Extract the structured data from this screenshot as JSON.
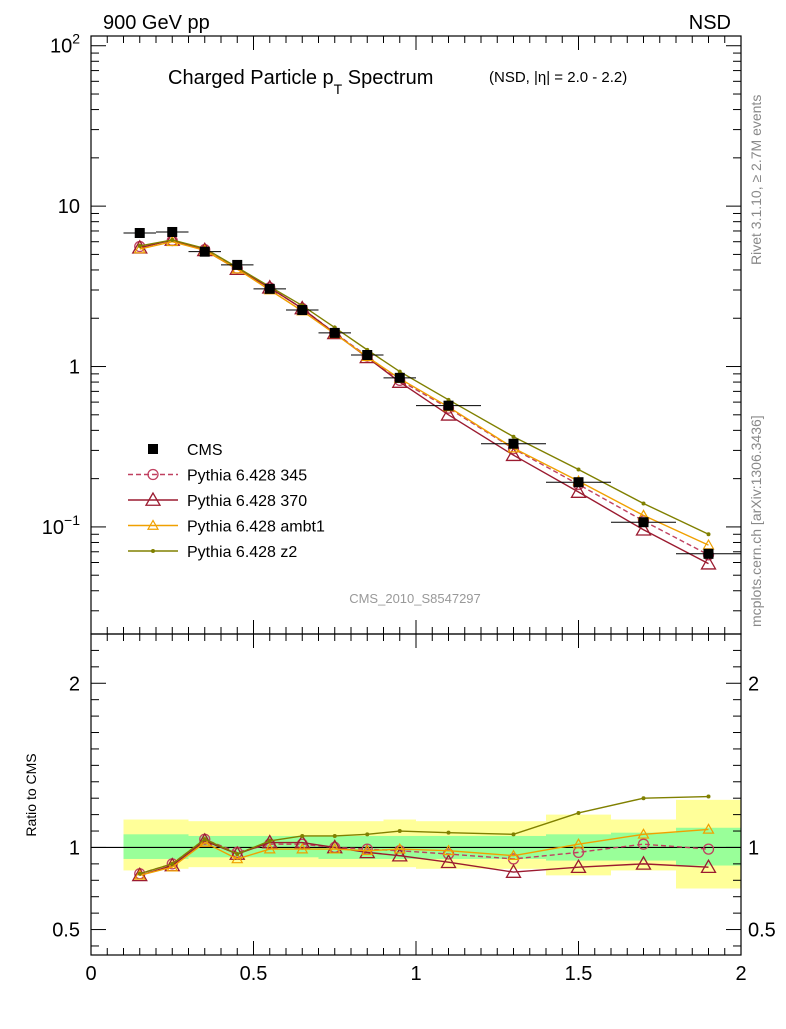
{
  "header": {
    "left": "900 GeV pp",
    "right": "NSD"
  },
  "side_labels": {
    "upper": "Rivet 3.1.10, ≥ 2.7M events",
    "lower": "mcplots.cern.ch [arXiv:1306.3436]"
  },
  "title": {
    "main_prefix": "Charged Particle p",
    "main_sub": "T",
    "main_suffix": " Spectrum",
    "qualifier": "(NSD, |η| = 2.0 - 2.2)"
  },
  "analysis_id": "CMS_2010_S8547297",
  "chart_data": [
    {
      "type": "scatter",
      "panel": "main",
      "log_y": true,
      "xlim": [
        0,
        2
      ],
      "ylim": [
        0.0215,
        115
      ],
      "y_tick_labels": [
        "10^2",
        "10",
        "1",
        "10^-1"
      ],
      "legend_placement": "bottom-left",
      "data": {
        "name": "CMS",
        "x": [
          0.15,
          0.25,
          0.35,
          0.45,
          0.55,
          0.65,
          0.75,
          0.85,
          0.95,
          1.1,
          1.3,
          1.5,
          1.7,
          1.9
        ],
        "y": [
          6.8,
          6.9,
          5.2,
          4.3,
          3.05,
          2.25,
          1.62,
          1.18,
          0.85,
          0.57,
          0.33,
          0.19,
          0.107,
          0.068
        ],
        "x_err": [
          0.05,
          0.05,
          0.05,
          0.05,
          0.05,
          0.05,
          0.05,
          0.05,
          0.05,
          0.1,
          0.1,
          0.1,
          0.1,
          0.1
        ],
        "color": "#000000"
      },
      "series": [
        {
          "name": "Pythia 6.428 345",
          "marker": "open-circle",
          "line": "dashed",
          "color": "#c04060",
          "x": [
            0.15,
            0.25,
            0.35,
            0.45,
            0.55,
            0.65,
            0.75,
            0.85,
            0.95,
            1.1,
            1.3,
            1.5,
            1.7,
            1.9
          ],
          "y": [
            5.6,
            6.1,
            5.35,
            4.1,
            3.1,
            2.3,
            1.62,
            1.16,
            0.82,
            0.55,
            0.307,
            0.184,
            0.109,
            0.067
          ]
        },
        {
          "name": "Pythia 6.428 370",
          "marker": "open-triangle",
          "line": "solid",
          "color": "#9b1b30",
          "x": [
            0.15,
            0.25,
            0.35,
            0.45,
            0.55,
            0.65,
            0.75,
            0.85,
            0.95,
            1.1,
            1.3,
            1.5,
            1.7,
            1.9
          ],
          "y": [
            5.5,
            6.15,
            5.3,
            4.05,
            3.1,
            2.3,
            1.61,
            1.14,
            0.8,
            0.5,
            0.28,
            0.165,
            0.096,
            0.059
          ]
        },
        {
          "name": "Pythia 6.428 ambt1",
          "marker": "open-triangle-small",
          "line": "solid",
          "color": "#f0a000",
          "x": [
            0.15,
            0.25,
            0.35,
            0.45,
            0.55,
            0.65,
            0.75,
            0.85,
            0.95,
            1.1,
            1.3,
            1.5,
            1.7,
            1.9
          ],
          "y": [
            5.4,
            6.0,
            5.3,
            4.05,
            3.0,
            2.22,
            1.6,
            1.15,
            0.84,
            0.56,
            0.31,
            0.193,
            0.118,
            0.077
          ]
        },
        {
          "name": "Pythia 6.428 z2",
          "marker": "dot",
          "line": "solid",
          "color": "#808000",
          "x": [
            0.15,
            0.25,
            0.35,
            0.45,
            0.55,
            0.65,
            0.75,
            0.85,
            0.95,
            1.1,
            1.3,
            1.5,
            1.7,
            1.9
          ],
          "y": [
            5.65,
            6.15,
            5.45,
            4.15,
            3.15,
            2.4,
            1.75,
            1.27,
            0.93,
            0.62,
            0.365,
            0.228,
            0.14,
            0.09
          ]
        }
      ]
    },
    {
      "type": "line",
      "panel": "ratio",
      "ylabel": "Ratio to CMS",
      "xlim": [
        0,
        2
      ],
      "ylim": [
        0.345,
        2.3
      ],
      "x_ticks": [
        0,
        0.5,
        1,
        1.5,
        2
      ],
      "x_tick_labels": [
        "0",
        "0.5",
        "1",
        "1.5",
        "2"
      ],
      "y_ticks": [
        0.5,
        1,
        2
      ],
      "y_tick_labels": [
        "0.5",
        "1",
        "2"
      ],
      "reference_line": 1,
      "bands": [
        {
          "name": "stat",
          "color": "#99ff99",
          "x_lo": [
            0.1,
            0.2,
            0.3,
            0.4,
            0.5,
            0.6,
            0.7,
            0.8,
            0.9,
            1.0,
            1.2,
            1.4,
            1.6,
            1.8
          ],
          "x_hi": [
            0.2,
            0.3,
            0.4,
            0.5,
            0.6,
            0.7,
            0.8,
            0.9,
            1.0,
            1.2,
            1.4,
            1.6,
            1.8,
            2.0
          ],
          "lo": [
            0.93,
            0.93,
            0.94,
            0.94,
            0.94,
            0.94,
            0.93,
            0.93,
            0.93,
            0.93,
            0.93,
            0.92,
            0.92,
            0.89
          ],
          "hi": [
            1.08,
            1.08,
            1.07,
            1.07,
            1.07,
            1.07,
            1.07,
            1.07,
            1.07,
            1.07,
            1.07,
            1.08,
            1.09,
            1.12
          ]
        },
        {
          "name": "syst",
          "color": "#ffff99",
          "x_lo": [
            0.1,
            0.2,
            0.3,
            0.4,
            0.5,
            0.6,
            0.7,
            0.8,
            0.9,
            1.0,
            1.2,
            1.4,
            1.6,
            1.8
          ],
          "x_hi": [
            0.2,
            0.3,
            0.4,
            0.5,
            0.6,
            0.7,
            0.8,
            0.9,
            1.0,
            1.2,
            1.4,
            1.6,
            1.8,
            2.0
          ],
          "lo": [
            0.86,
            0.87,
            0.88,
            0.88,
            0.88,
            0.88,
            0.88,
            0.88,
            0.88,
            0.87,
            0.87,
            0.83,
            0.86,
            0.75
          ],
          "hi": [
            1.17,
            1.17,
            1.16,
            1.16,
            1.16,
            1.16,
            1.16,
            1.16,
            1.17,
            1.16,
            1.16,
            1.2,
            1.17,
            1.29
          ]
        }
      ],
      "series": [
        {
          "name": "Pythia 6.428 345",
          "color": "#c04060",
          "marker": "open-circle",
          "line": "dashed",
          "x": [
            0.15,
            0.25,
            0.35,
            0.45,
            0.55,
            0.65,
            0.75,
            0.85,
            0.95,
            1.1,
            1.3,
            1.5,
            1.7,
            1.9
          ],
          "y": [
            0.84,
            0.9,
            1.05,
            0.97,
            1.02,
            1.02,
            1.0,
            0.99,
            0.98,
            0.96,
            0.93,
            0.97,
            1.02,
            0.99
          ]
        },
        {
          "name": "Pythia 6.428 370",
          "color": "#9b1b30",
          "marker": "open-triangle",
          "line": "solid",
          "x": [
            0.15,
            0.25,
            0.35,
            0.45,
            0.55,
            0.65,
            0.75,
            0.85,
            0.95,
            1.1,
            1.3,
            1.5,
            1.7,
            1.9
          ],
          "y": [
            0.83,
            0.89,
            1.04,
            0.96,
            1.03,
            1.03,
            1.0,
            0.97,
            0.95,
            0.91,
            0.85,
            0.88,
            0.9,
            0.88
          ]
        },
        {
          "name": "Pythia 6.428 ambt1",
          "color": "#f0a000",
          "marker": "open-triangle-small",
          "line": "solid",
          "x": [
            0.15,
            0.25,
            0.35,
            0.45,
            0.55,
            0.65,
            0.75,
            0.85,
            0.95,
            1.1,
            1.3,
            1.5,
            1.7,
            1.9
          ],
          "y": [
            0.83,
            0.88,
            1.03,
            0.93,
            0.99,
            0.99,
            0.99,
            0.98,
            0.99,
            0.98,
            0.95,
            1.02,
            1.08,
            1.11
          ]
        },
        {
          "name": "Pythia 6.428 z2",
          "color": "#808000",
          "marker": "dot",
          "line": "solid",
          "x": [
            0.15,
            0.25,
            0.35,
            0.45,
            0.55,
            0.65,
            0.75,
            0.85,
            0.95,
            1.1,
            1.3,
            1.5,
            1.7,
            1.9
          ],
          "y": [
            0.84,
            0.9,
            1.05,
            0.96,
            1.04,
            1.07,
            1.07,
            1.08,
            1.1,
            1.09,
            1.08,
            1.21,
            1.3,
            1.31
          ]
        }
      ]
    }
  ]
}
